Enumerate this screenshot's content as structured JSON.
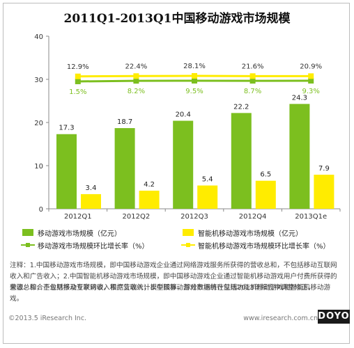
{
  "title": "2011Q1-2013Q1中国移动游戏市场规模",
  "chart_data": {
    "type": "bar",
    "categories": [
      "2012Q1",
      "2012Q2",
      "2012Q3",
      "2012Q4",
      "2013Q1e"
    ],
    "ylim": [
      0,
      40
    ],
    "yticks": [
      0,
      10,
      20,
      30,
      40
    ],
    "series": [
      {
        "name": "移动游戏市场规模（亿元）",
        "kind": "bar",
        "color": "#7cbf1f",
        "values": [
          17.3,
          18.7,
          20.4,
          22.2,
          24.3
        ]
      },
      {
        "name": "智能机移动游戏市场规模（亿元）",
        "kind": "bar",
        "color": "#ffec00",
        "values": [
          3.4,
          4.2,
          5.4,
          6.5,
          7.9
        ]
      },
      {
        "name": "移动游戏市场规模环比增长率（%）",
        "kind": "line",
        "color": "#7cbf1f",
        "labels": [
          "1.5%",
          "8.2%",
          "9.5%",
          "8.7%",
          "9.3%"
        ],
        "values": [
          1.5,
          8.2,
          9.5,
          8.7,
          9.3
        ]
      },
      {
        "name": "智能机移动游戏市场规模环比增长率（%）",
        "kind": "line",
        "color": "#ffec00",
        "labels": [
          "12.9%",
          "22.4%",
          "28.1%",
          "21.6%",
          "20.9%"
        ],
        "values": [
          12.9,
          22.4,
          28.1,
          21.6,
          20.9
        ]
      }
    ],
    "legend_position": "bottom",
    "grid": false
  },
  "footer": {
    "note": "注释：1.中国移动游戏市场规模，即中国移动游戏企业通过网络游戏服务所获得的营收总和，不包括移动互联网收入和广告收入；2.中国智能机移动游戏市场规模，即中国移动游戏企业通过智能机移动游戏用户付费所获得的营收总和，不包括移动互联网收入和广告收入；3.中国移动游戏市场统计包括功能机移动游戏和智能机移动游戏。",
    "source": "来源：综合企业财报及专家访谈，根据艾瑞统计模型核算，部分数据将在艾瑞2013年报告中调整修正。",
    "copyright": "©2013.5 iResearch Inc.",
    "website": "www.iresearch.com.cn",
    "logo": "DOYO"
  }
}
